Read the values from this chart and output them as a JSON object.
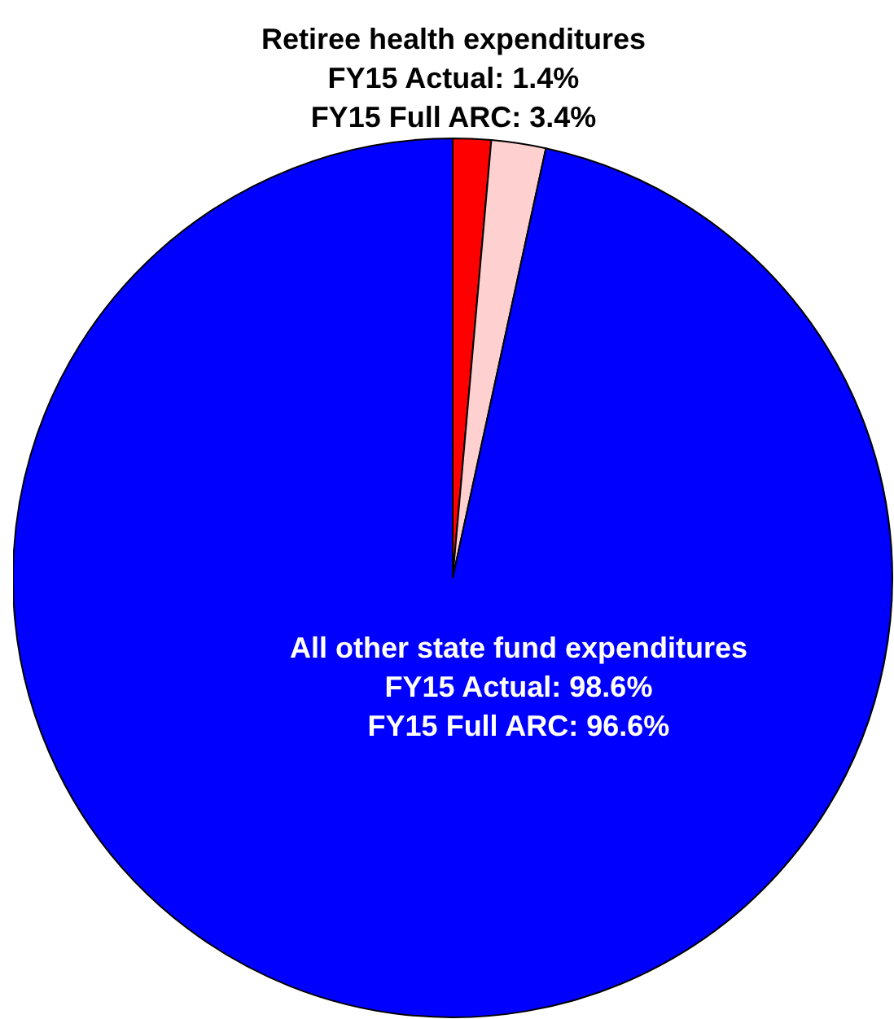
{
  "chart_data": {
    "type": "pie",
    "categories": [
      null,
      null,
      null
    ],
    "values": [
      1.4,
      2.0,
      96.6
    ],
    "colors": [
      "#ff0000",
      "#ffd0d0",
      "#0000ff"
    ],
    "annotations": [
      "Retiree health expenditures\nFY15 Actual: 1.4%\nFY15 Full ARC: 3.4%",
      "All other state fund expenditures\nFY15 Actual: 98.6%\nFY15 Full ARC: 96.6%"
    ],
    "legend": false
  }
}
